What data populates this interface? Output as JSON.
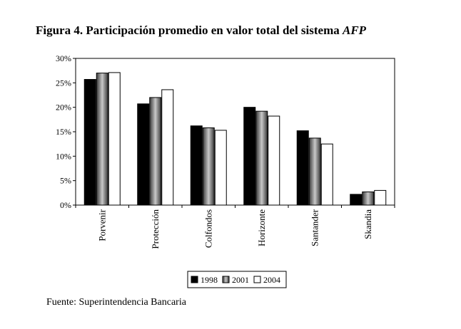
{
  "figure": {
    "title_main": "Figura 4. Participación promedio en valor total del sistema ",
    "title_italic": "AFP",
    "source": "Fuente: Superintendencia Bancaria"
  },
  "chart_data": {
    "type": "bar",
    "title": "Figura 4. Participación promedio en valor total del sistema AFP",
    "categories": [
      "Porvenir",
      "Protección",
      "Colfondos",
      "Horizonte",
      "Santander",
      "Skandia"
    ],
    "series": [
      {
        "name": "1998",
        "values": [
          25.7,
          20.7,
          16.2,
          20.0,
          15.2,
          2.2
        ],
        "color": "#000000"
      },
      {
        "name": "2001",
        "values": [
          27.0,
          22.0,
          15.8,
          19.2,
          13.7,
          2.7
        ],
        "color": "#777777"
      },
      {
        "name": "2004",
        "values": [
          27.1,
          23.6,
          15.3,
          18.2,
          12.5,
          3.0
        ],
        "color": "#ffffff"
      }
    ],
    "ylim": [
      0,
      30
    ],
    "yticks": [
      "0%",
      "5%",
      "10%",
      "15%",
      "20%",
      "25%",
      "30%"
    ],
    "xlabel": "",
    "ylabel": "",
    "grid": false,
    "legend_position": "bottom"
  }
}
